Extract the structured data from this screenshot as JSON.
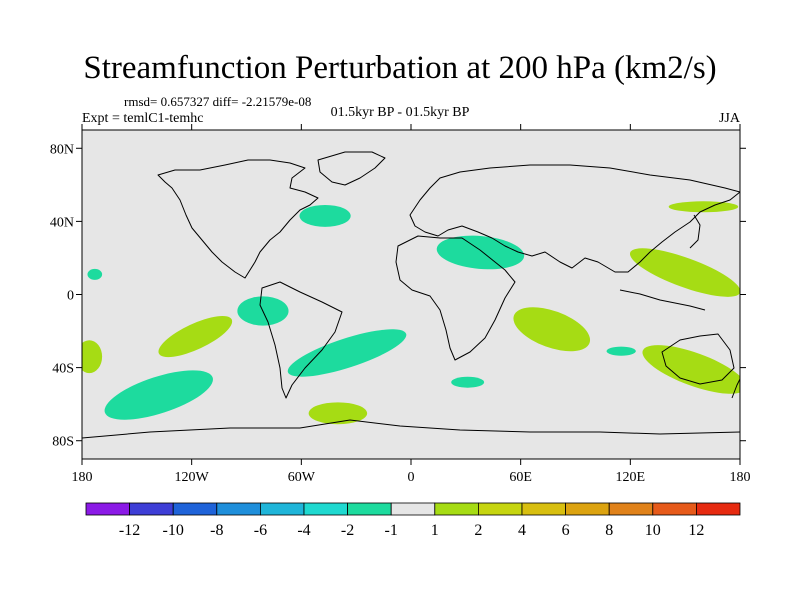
{
  "chart_data": {
    "type": "contour-map",
    "title": "Streamfunction Perturbation at 200 hPa (km2/s)",
    "stats": "rmsd= 0.657327 diff= -2.21579e-08",
    "expt": "Expt = temlC1-temhc",
    "period": "01.5kyr BP - 01.5kyr BP",
    "season": "JJA",
    "lon_range": [
      -180,
      180
    ],
    "lat_range": [
      -90,
      90
    ],
    "x_ticks": [
      {
        "lon": -180,
        "label": "180"
      },
      {
        "lon": -120,
        "label": "120W"
      },
      {
        "lon": -60,
        "label": "60W"
      },
      {
        "lon": 0,
        "label": "0"
      },
      {
        "lon": 60,
        "label": "60E"
      },
      {
        "lon": 120,
        "label": "120E"
      },
      {
        "lon": 180,
        "label": "180"
      }
    ],
    "y_ticks": [
      {
        "lat": 80,
        "label": "80N"
      },
      {
        "lat": 40,
        "label": "40N"
      },
      {
        "lat": 0,
        "label": "0"
      },
      {
        "lat": -40,
        "label": "40S"
      },
      {
        "lat": -80,
        "label": "80S"
      }
    ],
    "colorbar": {
      "colors": [
        "#8b1ae6",
        "#3e3ed6",
        "#1f63d9",
        "#1f8fdb",
        "#1fb5d9",
        "#1fd9d0",
        "#1ddb9e",
        "#e6e6e6",
        "#a6dc14",
        "#c6d510",
        "#d8bf10",
        "#dca310",
        "#e0821a",
        "#e65a1a",
        "#e62a10"
      ],
      "labels": [
        "-12",
        "-10",
        "-8",
        "-6",
        "-4",
        "-2",
        "-1",
        "1",
        "2",
        "4",
        "6",
        "8",
        "10",
        "12"
      ]
    },
    "anomalies": [
      {
        "lon": -47,
        "lat": 43,
        "rx": 14,
        "ry": 6,
        "rot": 0,
        "value": -1.5
      },
      {
        "lon": 38,
        "lat": 23,
        "rx": 24,
        "ry": 9,
        "rot": 5,
        "value": -1.5
      },
      {
        "lon": -173,
        "lat": 11,
        "rx": 4,
        "ry": 3,
        "rot": 0,
        "value": -1.5
      },
      {
        "lon": -81,
        "lat": -9,
        "rx": 14,
        "ry": 8,
        "rot": 0,
        "value": -1.5
      },
      {
        "lon": -35,
        "lat": -32,
        "rx": 34,
        "ry": 8,
        "rot": -18,
        "value": -1.5
      },
      {
        "lon": -138,
        "lat": -55,
        "rx": 31,
        "ry": 10,
        "rot": -18,
        "value": -1.5
      },
      {
        "lon": 31,
        "lat": -48,
        "rx": 9,
        "ry": 3,
        "rot": 0,
        "value": -1.5
      },
      {
        "lon": 115,
        "lat": -31,
        "rx": 8,
        "ry": 2.5,
        "rot": 0,
        "value": -1.5
      },
      {
        "lon": -118,
        "lat": -23,
        "rx": 22,
        "ry": 7,
        "rot": -25,
        "value": 1.5
      },
      {
        "lon": -176,
        "lat": -34,
        "rx": 7,
        "ry": 9,
        "rot": 0,
        "value": 1.5
      },
      {
        "lon": 77,
        "lat": -19,
        "rx": 22,
        "ry": 10,
        "rot": 20,
        "value": 1.5
      },
      {
        "lon": 150,
        "lat": 12,
        "rx": 32,
        "ry": 8,
        "rot": 20,
        "value": 1.5
      },
      {
        "lon": 160,
        "lat": 48,
        "rx": 19,
        "ry": 3,
        "rot": 0,
        "value": 1.5
      },
      {
        "lon": 155,
        "lat": -41,
        "rx": 30,
        "ry": 9,
        "rot": 20,
        "value": 1.5
      },
      {
        "lon": -40,
        "lat": -65,
        "rx": 16,
        "ry": 6,
        "rot": 0,
        "value": 1.5
      }
    ],
    "background_color": "#e6e6e6"
  }
}
